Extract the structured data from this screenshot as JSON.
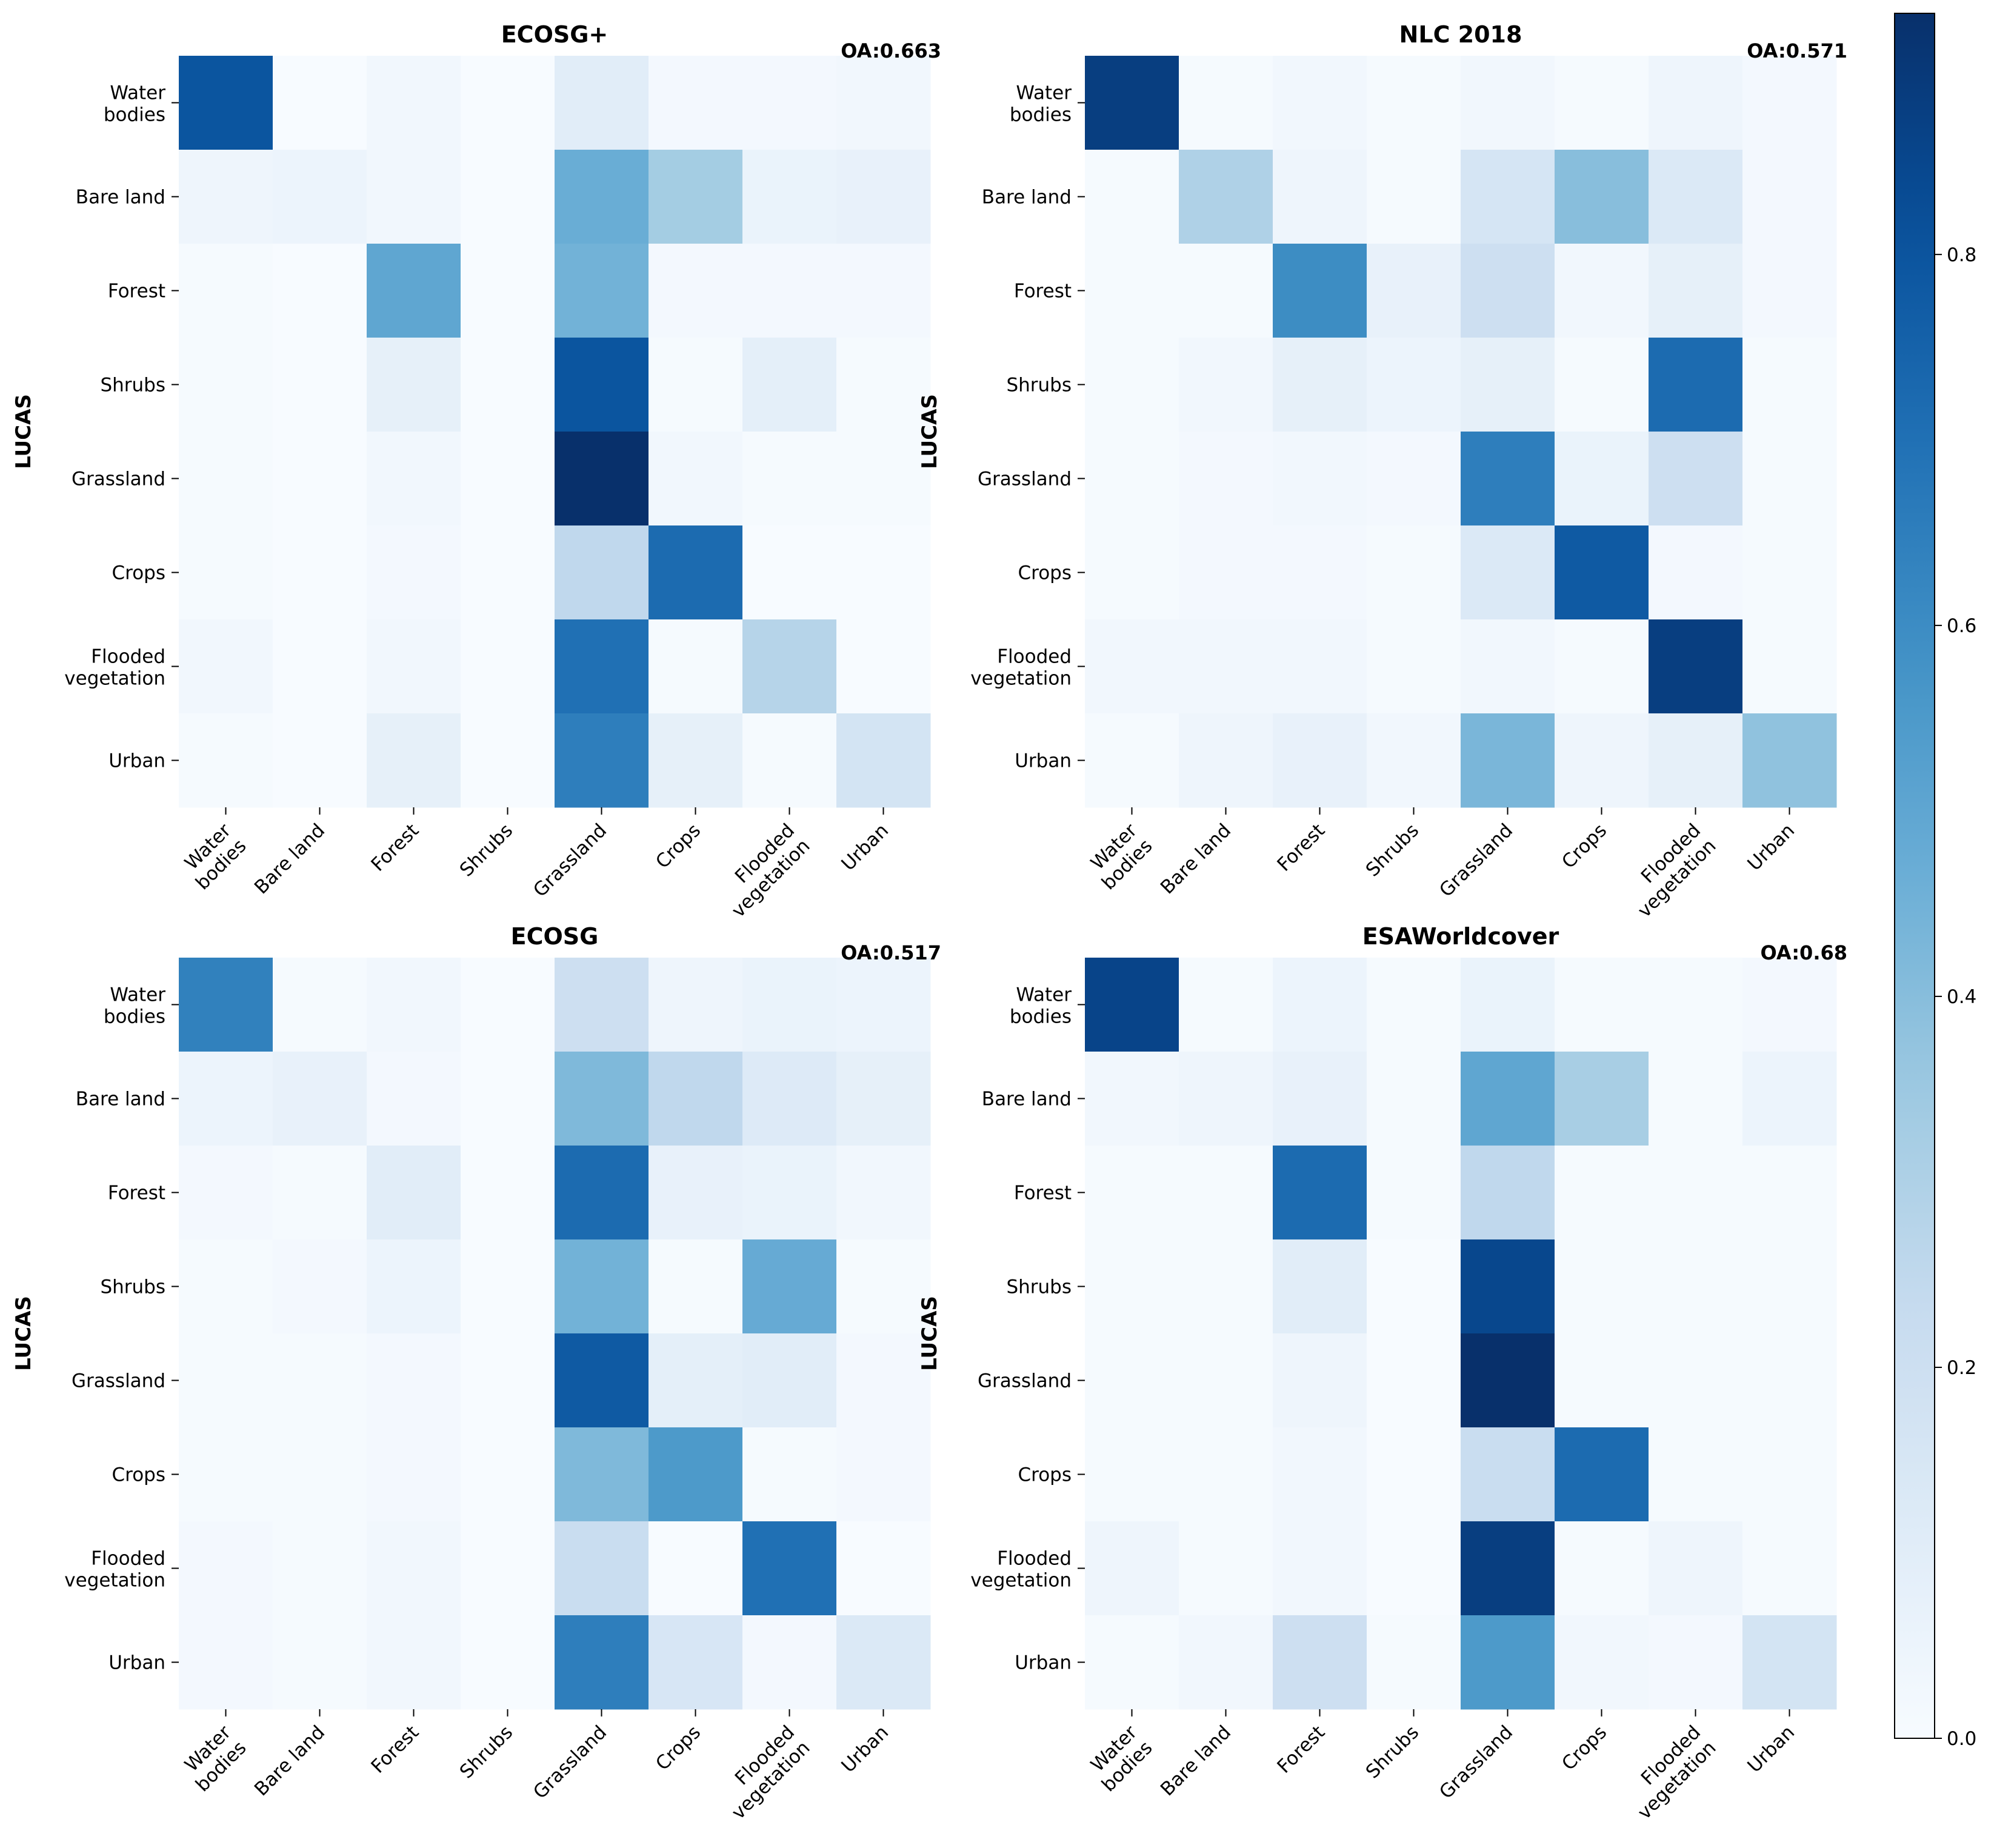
{
  "chart_data": {
    "type": "heatmap",
    "categories": [
      "Water bodies",
      "Bare land",
      "Forest",
      "Shrubs",
      "Grassland",
      "Crops",
      "Flooded vegetation",
      "Urban"
    ],
    "ylabel": "LUCAS",
    "colorbar": {
      "min": 0.0,
      "max": 0.93,
      "ticks": [
        "0.0",
        "0.2",
        "0.4",
        "0.6",
        "0.8"
      ],
      "tick_values": [
        0.0,
        0.2,
        0.4,
        0.6,
        0.8
      ],
      "cmap": "Blues"
    },
    "panels": [
      {
        "title": "ECOSG+",
        "oa": "OA:0.663",
        "matrix": [
          [
            0.8,
            0.0,
            0.03,
            0.0,
            0.1,
            0.02,
            0.02,
            0.03
          ],
          [
            0.04,
            0.05,
            0.03,
            0.0,
            0.47,
            0.33,
            0.06,
            0.07
          ],
          [
            0.01,
            0.0,
            0.5,
            0.0,
            0.45,
            0.02,
            0.02,
            0.02
          ],
          [
            0.01,
            0.0,
            0.08,
            0.0,
            0.8,
            0.01,
            0.09,
            0.01
          ],
          [
            0.01,
            0.0,
            0.03,
            0.0,
            0.93,
            0.03,
            0.01,
            0.01
          ],
          [
            0.01,
            0.0,
            0.02,
            0.0,
            0.25,
            0.72,
            0.0,
            0.0
          ],
          [
            0.03,
            0.0,
            0.03,
            0.0,
            0.7,
            0.01,
            0.28,
            0.0
          ],
          [
            0.01,
            0.0,
            0.08,
            0.0,
            0.65,
            0.08,
            0.01,
            0.17
          ]
        ]
      },
      {
        "title": "NLC 2018",
        "oa": "OA:0.571",
        "matrix": [
          [
            0.88,
            0.01,
            0.03,
            0.01,
            0.03,
            0.01,
            0.04,
            0.02
          ],
          [
            0.01,
            0.3,
            0.04,
            0.01,
            0.16,
            0.4,
            0.13,
            0.02
          ],
          [
            0.01,
            0.01,
            0.6,
            0.07,
            0.2,
            0.03,
            0.08,
            0.02
          ],
          [
            0.01,
            0.03,
            0.08,
            0.05,
            0.08,
            0.01,
            0.72,
            0.01
          ],
          [
            0.01,
            0.02,
            0.03,
            0.02,
            0.65,
            0.06,
            0.2,
            0.01
          ],
          [
            0.01,
            0.02,
            0.02,
            0.01,
            0.13,
            0.78,
            0.02,
            0.01
          ],
          [
            0.03,
            0.03,
            0.03,
            0.01,
            0.03,
            0.01,
            0.88,
            0.01
          ],
          [
            0.01,
            0.04,
            0.07,
            0.03,
            0.43,
            0.04,
            0.08,
            0.38
          ]
        ]
      },
      {
        "title": "ECOSG",
        "oa": "OA:0.517",
        "matrix": [
          [
            0.64,
            0.01,
            0.03,
            0.0,
            0.2,
            0.04,
            0.06,
            0.05
          ],
          [
            0.05,
            0.07,
            0.02,
            0.0,
            0.42,
            0.25,
            0.12,
            0.08
          ],
          [
            0.02,
            0.01,
            0.1,
            0.0,
            0.72,
            0.07,
            0.06,
            0.03
          ],
          [
            0.01,
            0.02,
            0.05,
            0.0,
            0.45,
            0.01,
            0.48,
            0.01
          ],
          [
            0.01,
            0.01,
            0.02,
            0.0,
            0.78,
            0.09,
            0.1,
            0.02
          ],
          [
            0.01,
            0.01,
            0.02,
            0.0,
            0.42,
            0.55,
            0.01,
            0.02
          ],
          [
            0.02,
            0.01,
            0.03,
            0.0,
            0.22,
            0.0,
            0.7,
            0.0
          ],
          [
            0.02,
            0.01,
            0.03,
            0.0,
            0.65,
            0.15,
            0.02,
            0.13
          ]
        ]
      },
      {
        "title": "ESAWorldcover",
        "oa": "OA:0.68",
        "matrix": [
          [
            0.86,
            0.01,
            0.05,
            0.01,
            0.06,
            0.01,
            0.01,
            0.02
          ],
          [
            0.03,
            0.04,
            0.07,
            0.01,
            0.5,
            0.32,
            0.01,
            0.05
          ],
          [
            0.01,
            0.01,
            0.72,
            0.01,
            0.25,
            0.01,
            0.01,
            0.01
          ],
          [
            0.01,
            0.01,
            0.1,
            0.0,
            0.85,
            0.01,
            0.01,
            0.01
          ],
          [
            0.01,
            0.01,
            0.04,
            0.0,
            0.93,
            0.01,
            0.01,
            0.01
          ],
          [
            0.01,
            0.01,
            0.03,
            0.0,
            0.22,
            0.72,
            0.01,
            0.01
          ],
          [
            0.04,
            0.01,
            0.03,
            0.0,
            0.88,
            0.01,
            0.04,
            0.01
          ],
          [
            0.01,
            0.03,
            0.2,
            0.01,
            0.55,
            0.03,
            0.02,
            0.17
          ]
        ]
      }
    ]
  }
}
